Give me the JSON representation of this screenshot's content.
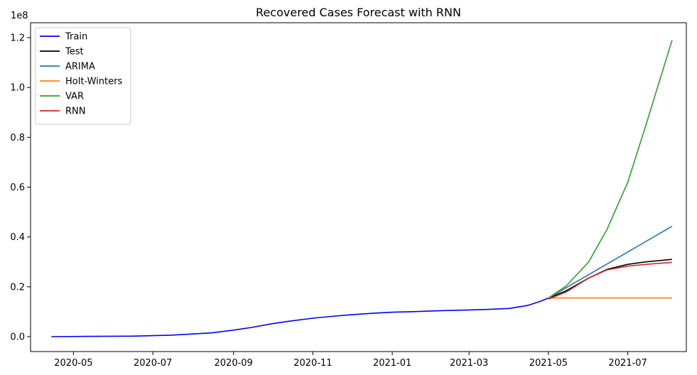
{
  "chart_data": {
    "type": "line",
    "title": "Recovered Cases Forecast with RNN",
    "xlabel": "",
    "ylabel": "",
    "y_scale_label": "1e8",
    "y_unit_factor": 100000000,
    "xlim": [
      "2020-03-29",
      "2021-08-15"
    ],
    "ylim": [
      -0.06,
      1.26
    ],
    "x_ticks": [
      "2020-05-01",
      "2020-07-01",
      "2020-09-01",
      "2020-11-01",
      "2021-01-01",
      "2021-03-01",
      "2021-05-01",
      "2021-07-01"
    ],
    "x_tick_labels": [
      "2020-05",
      "2020-07",
      "2020-09",
      "2020-11",
      "2021-01",
      "2021-03",
      "2021-05",
      "2021-07"
    ],
    "y_ticks": [
      0.0,
      0.2,
      0.4,
      0.6,
      0.8,
      1.0,
      1.2
    ],
    "y_tick_labels": [
      "0.0",
      "0.2",
      "0.4",
      "0.6",
      "0.8",
      "1.0",
      "1.2"
    ],
    "grid": false,
    "legend": "top-left",
    "series": [
      {
        "name": "Train",
        "color": "#0000ff",
        "points": [
          [
            "2020-04-14",
            0.0
          ],
          [
            "2020-05-15",
            0.001
          ],
          [
            "2020-06-15",
            0.002
          ],
          [
            "2020-07-15",
            0.006
          ],
          [
            "2020-08-15",
            0.015
          ],
          [
            "2020-09-01",
            0.026
          ],
          [
            "2020-09-15",
            0.037
          ],
          [
            "2020-10-01",
            0.052
          ],
          [
            "2020-10-15",
            0.063
          ],
          [
            "2020-11-01",
            0.074
          ],
          [
            "2020-11-15",
            0.081
          ],
          [
            "2020-12-01",
            0.088
          ],
          [
            "2020-12-15",
            0.093
          ],
          [
            "2021-01-01",
            0.098
          ],
          [
            "2021-01-15",
            0.1
          ],
          [
            "2021-02-01",
            0.103
          ],
          [
            "2021-02-15",
            0.105
          ],
          [
            "2021-03-01",
            0.107
          ],
          [
            "2021-03-15",
            0.109
          ],
          [
            "2021-04-01",
            0.113
          ],
          [
            "2021-04-15",
            0.125
          ],
          [
            "2021-04-25",
            0.142
          ],
          [
            "2021-05-01",
            0.155
          ]
        ]
      },
      {
        "name": "Test",
        "color": "#000000",
        "points": [
          [
            "2021-05-01",
            0.155
          ],
          [
            "2021-05-15",
            0.185
          ],
          [
            "2021-06-01",
            0.235
          ],
          [
            "2021-06-15",
            0.27
          ],
          [
            "2021-07-01",
            0.29
          ],
          [
            "2021-07-15",
            0.3
          ],
          [
            "2021-08-04",
            0.31
          ]
        ]
      },
      {
        "name": "ARIMA",
        "color": "#1f77b4",
        "points": [
          [
            "2021-05-01",
            0.155
          ],
          [
            "2021-08-04",
            0.443
          ]
        ]
      },
      {
        "name": "Holt-Winters",
        "color": "#ff7f0e",
        "points": [
          [
            "2021-05-01",
            0.155
          ],
          [
            "2021-08-04",
            0.155
          ]
        ]
      },
      {
        "name": "VAR",
        "color": "#2ca02c",
        "points": [
          [
            "2021-05-01",
            0.155
          ],
          [
            "2021-05-15",
            0.205
          ],
          [
            "2021-06-01",
            0.3
          ],
          [
            "2021-06-15",
            0.43
          ],
          [
            "2021-07-01",
            0.62
          ],
          [
            "2021-07-15",
            0.85
          ],
          [
            "2021-08-04",
            1.19
          ]
        ]
      },
      {
        "name": "RNN",
        "color": "#d62728",
        "points": [
          [
            "2021-05-01",
            0.15
          ],
          [
            "2021-05-15",
            0.18
          ],
          [
            "2021-06-01",
            0.235
          ],
          [
            "2021-06-15",
            0.268
          ],
          [
            "2021-07-01",
            0.283
          ],
          [
            "2021-07-15",
            0.29
          ],
          [
            "2021-08-04",
            0.298
          ]
        ]
      }
    ]
  }
}
